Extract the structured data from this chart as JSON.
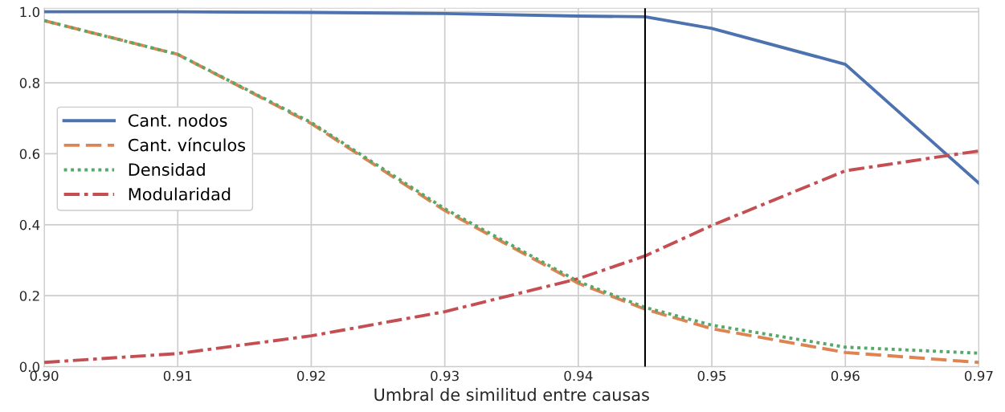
{
  "chart_data": {
    "type": "line",
    "xlabel": "Umbral de similitud entre causas",
    "x": [
      0.9,
      0.91,
      0.92,
      0.93,
      0.94,
      0.945,
      0.95,
      0.96,
      0.97
    ],
    "series": [
      {
        "name": "Cant. nodos",
        "color": "#4c72b0",
        "line_style": "solid",
        "values": [
          1.0,
          1.0,
          0.998,
          0.995,
          0.988,
          0.986,
          0.953,
          0.852,
          0.517
        ]
      },
      {
        "name": "Cant. vínculos",
        "color": "#dd8452",
        "line_style": "dashed",
        "values": [
          0.975,
          0.88,
          0.685,
          0.44,
          0.235,
          0.162,
          0.107,
          0.04,
          0.012
        ]
      },
      {
        "name": "Densidad",
        "color": "#55a868",
        "line_style": "dotted",
        "values": [
          0.975,
          0.88,
          0.688,
          0.445,
          0.24,
          0.167,
          0.117,
          0.055,
          0.038
        ]
      },
      {
        "name": "Modularidad",
        "color": "#c44e52",
        "line_style": "dashdot",
        "values": [
          0.012,
          0.037,
          0.087,
          0.155,
          0.248,
          0.312,
          0.398,
          0.552,
          0.608
        ]
      }
    ],
    "xlim": [
      0.9,
      0.97
    ],
    "xticks": [
      {
        "value": 0.9,
        "label": "0.90"
      },
      {
        "value": 0.91,
        "label": "0.91"
      },
      {
        "value": 0.92,
        "label": "0.92"
      },
      {
        "value": 0.93,
        "label": "0.93"
      },
      {
        "value": 0.94,
        "label": "0.94"
      },
      {
        "value": 0.95,
        "label": "0.95"
      },
      {
        "value": 0.96,
        "label": "0.96"
      },
      {
        "value": 0.97,
        "label": "0.97"
      }
    ],
    "ylim": [
      0,
      1.01
    ],
    "yticks": [
      {
        "value": 0,
        "label": "0.0"
      },
      {
        "value": 0.2,
        "label": "0.2"
      },
      {
        "value": 0.4,
        "label": "0.4"
      },
      {
        "value": 0.6,
        "label": "0.6"
      },
      {
        "value": 0.8,
        "label": "0.8"
      },
      {
        "value": 1.0,
        "label": "1.0"
      }
    ],
    "ref_lines": [
      {
        "axis": "x",
        "value": 0.945,
        "color": "#000000",
        "line_style": "solid"
      }
    ],
    "grid": true,
    "legend": "left",
    "marker": "none"
  }
}
